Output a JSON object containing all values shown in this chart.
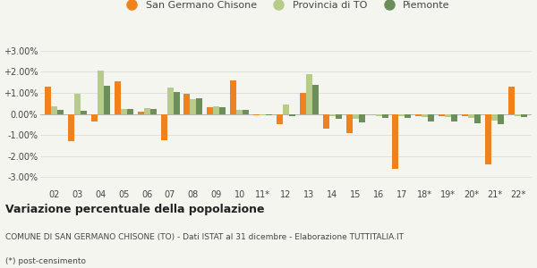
{
  "categories": [
    "02",
    "03",
    "04",
    "05",
    "06",
    "07",
    "08",
    "09",
    "10",
    "11*",
    "12",
    "13",
    "14",
    "15",
    "16",
    "17",
    "18*",
    "19*",
    "20*",
    "21*",
    "22*"
  ],
  "san_germano": [
    1.3,
    -1.3,
    -0.35,
    1.55,
    0.1,
    -1.25,
    0.95,
    0.3,
    1.6,
    -0.05,
    -0.5,
    1.0,
    -0.7,
    -0.9,
    0.0,
    -2.6,
    -0.1,
    -0.1,
    -0.1,
    -2.4,
    1.3
  ],
  "provincia_to": [
    0.35,
    0.95,
    2.05,
    0.25,
    0.27,
    1.25,
    0.7,
    0.35,
    0.2,
    -0.05,
    0.45,
    1.9,
    -0.12,
    -0.25,
    -0.1,
    -0.1,
    -0.15,
    -0.15,
    -0.2,
    -0.3,
    -0.1
  ],
  "piemonte": [
    0.2,
    0.15,
    1.35,
    0.25,
    0.22,
    1.05,
    0.75,
    0.3,
    0.2,
    -0.05,
    -0.1,
    1.4,
    -0.22,
    -0.4,
    -0.2,
    -0.2,
    -0.35,
    -0.35,
    -0.45,
    -0.5,
    -0.15
  ],
  "color_san_germano": "#f0821e",
  "color_provincia": "#b8cc8a",
  "color_piemonte": "#6b8e5a",
  "title": "Variazione percentuale della popolazione",
  "subtitle": "COMUNE DI SAN GERMANO CHISONE (TO) - Dati ISTAT al 31 dicembre - Elaborazione TUTTITALIA.IT",
  "footnote": "(*) post-censimento",
  "ylim": [
    -3.5,
    3.5
  ],
  "yticks": [
    -3.0,
    -2.0,
    -1.0,
    0.0,
    1.0,
    2.0,
    3.0
  ],
  "ytick_labels": [
    "-3.00%",
    "-2.00%",
    "-1.00%",
    "0.00%",
    "+1.00%",
    "+2.00%",
    "+3.00%"
  ],
  "bar_width": 0.27,
  "background_color": "#f5f5f0",
  "grid_color": "#d8d8d8",
  "text_color": "#444444",
  "legend_fontsize": 8,
  "tick_fontsize": 7,
  "title_fontsize": 9,
  "subtitle_fontsize": 6.5,
  "footnote_fontsize": 6.5
}
